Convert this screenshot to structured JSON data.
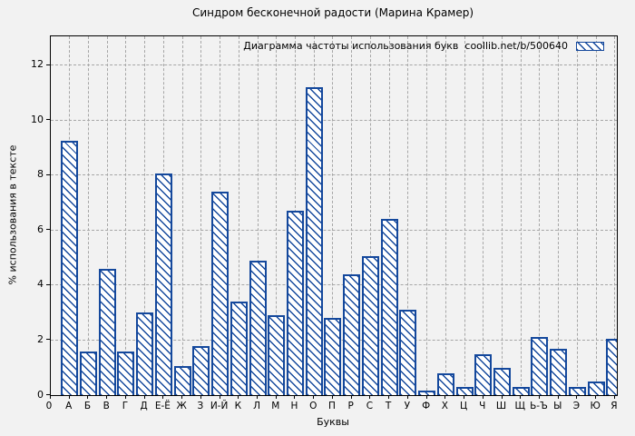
{
  "title": "Синдром бесконечной радости (Марина Крамер)",
  "colors": {
    "bar_outline": "#14489c",
    "bar_fill": "#ffffff",
    "grid": "#a6a6a6",
    "background": "#f2f2f2",
    "text": "#000000"
  },
  "legend": {
    "label": "Диаграмма частоты использования букв  coollib.net/b/500640",
    "swatch": "hatched-diagonal-swatch"
  },
  "chart_data": {
    "type": "bar",
    "title": "Синдром бесконечной радости (Марина Крамер)",
    "xlabel": "Буквы",
    "ylabel": "% использования в тексте",
    "legend_label": "Диаграмма частоты использования букв  coollib.net/b/500640",
    "legend_position": "top-right",
    "grid": true,
    "hatch": "diagonal-backslash",
    "x_origin_label": "0",
    "categories": [
      "А",
      "Б",
      "В",
      "Г",
      "Д",
      "Е-Ё",
      "Ж",
      "З",
      "И-Й",
      "К",
      "Л",
      "М",
      "Н",
      "О",
      "П",
      "Р",
      "С",
      "Т",
      "У",
      "Ф",
      "Х",
      "Ц",
      "Ч",
      "Ш",
      "Щ",
      "Ь-Ъ",
      "Ы",
      "Э",
      "Ю",
      "Я"
    ],
    "values": [
      9.25,
      1.6,
      4.6,
      1.6,
      3.0,
      8.05,
      1.05,
      1.8,
      7.4,
      3.4,
      4.9,
      2.9,
      6.7,
      11.2,
      2.8,
      4.4,
      5.05,
      6.4,
      3.1,
      0.15,
      0.8,
      0.3,
      1.5,
      1.0,
      0.3,
      2.1,
      1.7,
      0.3,
      0.5,
      2.05
    ],
    "ylim": [
      0,
      13.05
    ],
    "yticks": [
      0,
      2,
      4,
      6,
      8,
      10,
      12
    ]
  }
}
